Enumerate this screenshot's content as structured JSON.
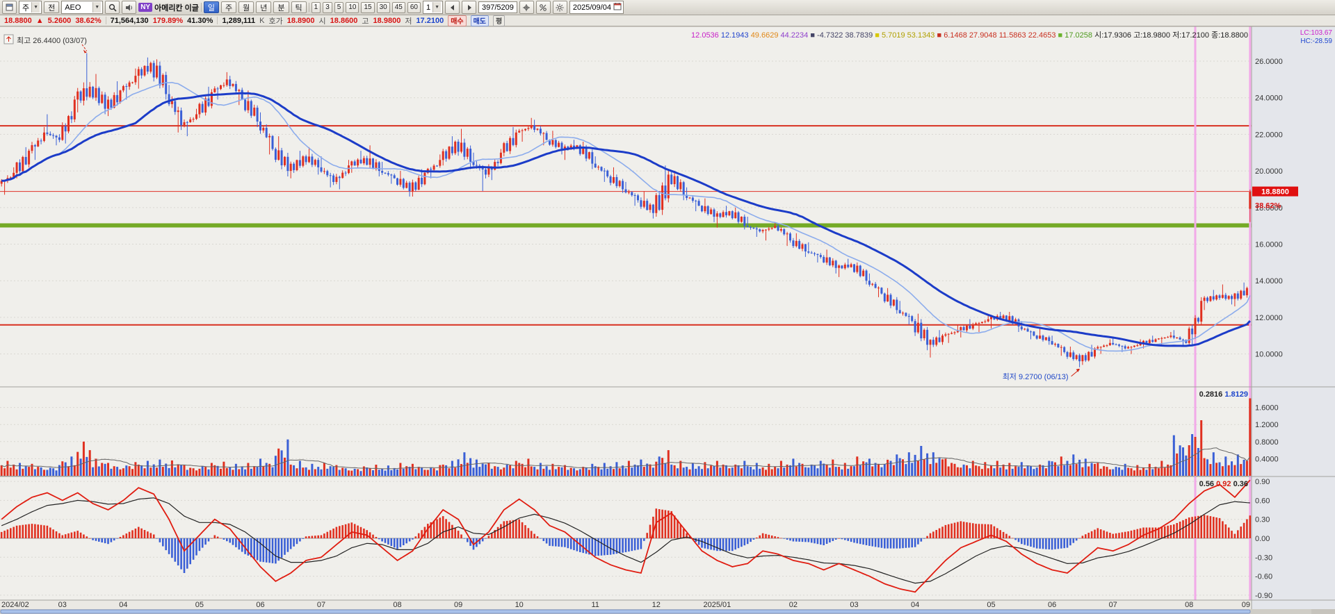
{
  "toolbar": {
    "market_select": "주",
    "all_button": "전",
    "symbol": "AEO",
    "market_badge": "NY",
    "stock_name": "아메리칸 이글",
    "periods": [
      "일",
      "주",
      "월",
      "년"
    ],
    "active_period": "일",
    "tick_buttons": [
      "분",
      "틱"
    ],
    "intervals": [
      "1",
      "3",
      "5",
      "10",
      "15",
      "30",
      "45",
      "60"
    ],
    "multiplier": "1",
    "range_indicator": "397/5209",
    "date": "2025/09/04"
  },
  "info_bar": {
    "price": "18.8800",
    "change_arrow": "▲",
    "change": "5.2600",
    "change_pct": "38.62%",
    "volume": "71,564,130",
    "turnover_pct": "179.89%",
    "ratio_pct": "41.30%",
    "value": "1,289,111",
    "value_unit": "K",
    "labels": {
      "quote": "호가",
      "open": "시",
      "high": "고",
      "low": "저"
    },
    "quote": "18.8900",
    "open": "18.8600",
    "high": "18.9800",
    "low": "17.2100",
    "buy": "매수",
    "sell": "매도",
    "avg": "평"
  },
  "annotations": {
    "highest": "최고 26.4400 (03/07)",
    "lowest": "최저 9.2700 (06/13)",
    "lc": "LC:103.67",
    "hc": "HC:-28.59"
  },
  "price_badge": {
    "value": "18.8800",
    "pct": "38.62%"
  },
  "legend_items": [
    {
      "text": "12.0536",
      "color": "#c820c8"
    },
    {
      "text": "12.1943",
      "color": "#2244cc"
    },
    {
      "text": "49.6629",
      "color": "#e08818"
    },
    {
      "text": "44.2234",
      "color": "#9040cc"
    },
    {
      "text": "-4.7322 38.7839",
      "color": "#444466",
      "marker": "#444466"
    },
    {
      "text": "5.7019 53.1343",
      "color": "#b0a000",
      "marker": "#d8c800"
    },
    {
      "text": "6.1468 27.9048 11.5863 22.4653",
      "color": "#c83020",
      "marker": "#c83020"
    },
    {
      "text": "17.0258",
      "color": "#4e9a1e",
      "marker": "#6ab22c"
    },
    {
      "text": "시:17.9306 고:18.9800 저:17.2100 종:18.8800",
      "color": "#222222"
    }
  ],
  "volume_legend": [
    {
      "text": "0.2816",
      "color": "#222222"
    },
    {
      "text": "1.8129",
      "color": "#1c44cc"
    }
  ],
  "osc_legend": [
    {
      "text": "0.56",
      "color": "#222222"
    },
    {
      "text": "0.92",
      "color": "#d81c10"
    },
    {
      "text": "0.36",
      "color": "#222222"
    }
  ],
  "chart_data": {
    "type": "candlestick",
    "symbol": "AEO",
    "timeframe": "daily (397/5209 bars shown, anchors below are weekly readings)",
    "price_axis": {
      "ticks": [
        26,
        24,
        22,
        20,
        18,
        16,
        14,
        12,
        10
      ],
      "labels": [
        "26.0000",
        "24.0000",
        "22.0000",
        "20.0000",
        "18.0000",
        "16.0000",
        "14.0000",
        "12.0000",
        "10.0000"
      ]
    },
    "volume_axis": {
      "ticks": [
        1.6,
        1.2,
        0.8,
        0.4
      ],
      "labels": [
        "1.6000",
        "1.2000",
        "0.8000",
        "0.4000"
      ]
    },
    "osc_axis": {
      "ticks": [
        0.9,
        0.6,
        0.3,
        0,
        -0.3,
        -0.6,
        -0.9
      ],
      "labels": [
        "0.90",
        "0.60",
        "0.30",
        "0.00",
        "-0.30",
        "-0.60",
        "-0.90"
      ]
    },
    "x_axis": {
      "labels": [
        "2024/02",
        "03",
        "04",
        "05",
        "06",
        "07",
        "08",
        "09",
        "10",
        "11",
        "12",
        "2025/01",
        "02",
        "03",
        "04",
        "05",
        "06",
        "07",
        "08",
        "09"
      ],
      "anchor_indices": [
        0,
        4,
        8,
        13,
        17,
        21,
        26,
        30,
        34,
        39,
        43,
        47,
        52,
        56,
        60,
        65,
        69,
        73,
        78,
        82
      ]
    },
    "hlines": [
      {
        "price": 22.4653,
        "color": "#d83020",
        "width": 2
      },
      {
        "price": 18.88,
        "color": "#e03028",
        "width": 1
      },
      {
        "price": 17.0258,
        "color": "#74aa26",
        "width": 6
      },
      {
        "price": 11.5863,
        "color": "#d83020",
        "width": 2
      }
    ],
    "vline_anchor_indices": [
      78,
      82
    ],
    "ma": [
      {
        "period": 20,
        "color": "#8cacec",
        "width": 1.6
      },
      {
        "period": 45,
        "color": "#1c3cc8",
        "width": 3
      }
    ],
    "highest": {
      "price": 26.44,
      "anchor": 5,
      "date": "03/07"
    },
    "lowest": {
      "price": 9.27,
      "anchor": 70,
      "date": "06/13"
    },
    "candles": [
      [
        19.3,
        20.2,
        18.7,
        19.9
      ],
      [
        19.9,
        21.3,
        19.6,
        21.1
      ],
      [
        21.1,
        22.4,
        20.6,
        22.1
      ],
      [
        22.1,
        23.1,
        21.4,
        21.7
      ],
      [
        21.7,
        24.1,
        21.5,
        23.9
      ],
      [
        23.9,
        26.44,
        23.2,
        24.6
      ],
      [
        24.6,
        25.3,
        23.1,
        23.4
      ],
      [
        23.4,
        24.9,
        23.0,
        24.4
      ],
      [
        24.4,
        25.6,
        23.9,
        25.2
      ],
      [
        25.2,
        26.2,
        24.5,
        25.9
      ],
      [
        25.9,
        26.1,
        23.9,
        24.2
      ],
      [
        24.2,
        24.7,
        22.1,
        22.5
      ],
      [
        22.5,
        23.4,
        21.9,
        23.1
      ],
      [
        23.1,
        24.6,
        22.9,
        24.3
      ],
      [
        24.3,
        25.4,
        23.9,
        25.0
      ],
      [
        25.0,
        25.2,
        23.6,
        23.9
      ],
      [
        23.9,
        24.4,
        22.4,
        22.7
      ],
      [
        22.7,
        23.2,
        20.9,
        21.2
      ],
      [
        21.2,
        21.9,
        19.7,
        20.0
      ],
      [
        20.0,
        21.1,
        19.6,
        20.8
      ],
      [
        20.8,
        21.3,
        19.8,
        20.2
      ],
      [
        20.2,
        20.8,
        19.1,
        19.4
      ],
      [
        19.4,
        20.6,
        19.0,
        20.3
      ],
      [
        20.3,
        21.1,
        19.9,
        20.7
      ],
      [
        20.7,
        21.4,
        19.7,
        20.0
      ],
      [
        20.0,
        20.5,
        19.3,
        19.6
      ],
      [
        19.6,
        20.0,
        18.6,
        18.9
      ],
      [
        18.9,
        20.1,
        18.6,
        19.9
      ],
      [
        19.9,
        20.9,
        19.6,
        20.6
      ],
      [
        20.6,
        21.9,
        20.3,
        21.6
      ],
      [
        21.6,
        22.3,
        20.1,
        20.5
      ],
      [
        20.5,
        21.0,
        18.9,
        19.8
      ],
      [
        19.8,
        21.2,
        19.5,
        21.0
      ],
      [
        21.0,
        22.4,
        20.8,
        22.1
      ],
      [
        22.1,
        22.9,
        21.6,
        22.5
      ],
      [
        22.5,
        22.8,
        21.4,
        21.7
      ],
      [
        21.7,
        22.2,
        20.9,
        21.2
      ],
      [
        21.2,
        21.7,
        20.6,
        21.4
      ],
      [
        21.4,
        21.6,
        20.1,
        20.4
      ],
      [
        20.4,
        20.8,
        19.4,
        19.7
      ],
      [
        19.7,
        20.2,
        18.8,
        19.0
      ],
      [
        19.0,
        19.4,
        18.1,
        18.4
      ],
      [
        18.4,
        18.9,
        17.4,
        17.7
      ],
      [
        17.7,
        20.3,
        17.5,
        19.8
      ],
      [
        19.8,
        20.0,
        18.4,
        18.7
      ],
      [
        18.7,
        19.1,
        17.8,
        18.1
      ],
      [
        18.1,
        18.5,
        17.2,
        17.5
      ],
      [
        17.5,
        18.1,
        16.9,
        17.8
      ],
      [
        17.8,
        18.0,
        16.8,
        17.0
      ],
      [
        17.0,
        17.5,
        16.4,
        16.7
      ],
      [
        16.7,
        17.2,
        16.2,
        17.0
      ],
      [
        17.0,
        17.1,
        15.9,
        16.2
      ],
      [
        16.2,
        16.6,
        15.3,
        15.6
      ],
      [
        15.6,
        16.1,
        15.0,
        15.3
      ],
      [
        15.3,
        15.7,
        14.4,
        14.7
      ],
      [
        14.7,
        15.2,
        14.2,
        14.9
      ],
      [
        14.9,
        15.0,
        13.8,
        14.0
      ],
      [
        14.0,
        14.4,
        13.1,
        13.3
      ],
      [
        13.3,
        13.6,
        12.2,
        12.4
      ],
      [
        12.4,
        12.9,
        11.6,
        11.8
      ],
      [
        11.8,
        12.2,
        10.2,
        10.5
      ],
      [
        10.5,
        11.3,
        9.8,
        11.0
      ],
      [
        11.0,
        11.6,
        10.6,
        11.3
      ],
      [
        11.3,
        11.9,
        10.9,
        11.6
      ],
      [
        11.6,
        12.1,
        11.2,
        11.9
      ],
      [
        11.9,
        12.3,
        11.4,
        12.1
      ],
      [
        12.1,
        12.3,
        11.2,
        11.5
      ],
      [
        11.5,
        11.8,
        10.8,
        11.0
      ],
      [
        11.0,
        11.4,
        10.5,
        10.7
      ],
      [
        10.7,
        11.0,
        9.9,
        10.1
      ],
      [
        10.1,
        10.4,
        9.27,
        9.6
      ],
      [
        9.6,
        10.5,
        9.4,
        10.3
      ],
      [
        10.3,
        10.8,
        10.0,
        10.6
      ],
      [
        10.6,
        10.9,
        10.1,
        10.3
      ],
      [
        10.3,
        10.8,
        10.0,
        10.6
      ],
      [
        10.6,
        11.0,
        10.3,
        10.8
      ],
      [
        10.8,
        11.2,
        10.5,
        11.0
      ],
      [
        11.0,
        11.3,
        10.4,
        10.6
      ],
      [
        10.6,
        13.1,
        10.5,
        12.9
      ],
      [
        12.9,
        13.5,
        12.4,
        13.2
      ],
      [
        13.2,
        13.8,
        12.7,
        13.0
      ],
      [
        13.0,
        13.9,
        12.6,
        13.6
      ],
      [
        17.9306,
        18.98,
        17.21,
        18.88
      ]
    ],
    "volumes": [
      0.35,
      0.3,
      0.28,
      0.25,
      0.45,
      0.8,
      0.4,
      0.3,
      0.32,
      0.35,
      0.38,
      0.36,
      0.25,
      0.3,
      0.33,
      0.28,
      0.3,
      0.4,
      0.85,
      0.35,
      0.28,
      0.3,
      0.25,
      0.22,
      0.26,
      0.24,
      0.3,
      0.28,
      0.25,
      0.35,
      0.55,
      0.38,
      0.3,
      0.35,
      0.4,
      0.3,
      0.28,
      0.25,
      0.28,
      0.3,
      0.32,
      0.35,
      0.38,
      0.6,
      0.35,
      0.3,
      0.32,
      0.35,
      0.35,
      0.3,
      0.28,
      0.35,
      0.4,
      0.35,
      0.38,
      0.3,
      0.45,
      0.4,
      0.5,
      0.55,
      0.7,
      0.55,
      0.4,
      0.35,
      0.32,
      0.35,
      0.3,
      0.32,
      0.35,
      0.45,
      0.5,
      0.4,
      0.3,
      0.28,
      0.25,
      0.28,
      0.35,
      0.95,
      1.3,
      0.55,
      0.45,
      0.5,
      1.8129
    ],
    "macd": {
      "red": [
        0.3,
        0.5,
        0.65,
        0.72,
        0.6,
        0.72,
        0.55,
        0.45,
        0.6,
        0.8,
        0.7,
        0.3,
        -0.2,
        0.05,
        0.3,
        0.15,
        -0.15,
        -0.45,
        -0.68,
        -0.55,
        -0.35,
        -0.3,
        -0.1,
        0.1,
        0.05,
        -0.15,
        -0.35,
        -0.2,
        0.15,
        0.45,
        0.3,
        -0.1,
        0.1,
        0.45,
        0.62,
        0.45,
        0.2,
        0.1,
        -0.1,
        -0.3,
        -0.42,
        -0.5,
        -0.55,
        0.25,
        0.4,
        0.1,
        -0.2,
        -0.35,
        -0.45,
        -0.4,
        -0.2,
        -0.25,
        -0.35,
        -0.4,
        -0.5,
        -0.4,
        -0.5,
        -0.6,
        -0.72,
        -0.8,
        -0.85,
        -0.6,
        -0.35,
        -0.15,
        -0.05,
        0.05,
        -0.05,
        -0.25,
        -0.4,
        -0.5,
        -0.55,
        -0.35,
        -0.15,
        -0.2,
        -0.1,
        0.05,
        0.15,
        0.3,
        0.55,
        0.75,
        0.85,
        0.65,
        0.92
      ],
      "black": [
        0.2,
        0.3,
        0.42,
        0.52,
        0.55,
        0.6,
        0.58,
        0.54,
        0.55,
        0.62,
        0.64,
        0.55,
        0.35,
        0.25,
        0.25,
        0.22,
        0.1,
        -0.08,
        -0.28,
        -0.38,
        -0.38,
        -0.35,
        -0.28,
        -0.15,
        -0.08,
        -0.1,
        -0.18,
        -0.18,
        -0.08,
        0.1,
        0.18,
        0.08,
        0.06,
        0.18,
        0.32,
        0.38,
        0.32,
        0.24,
        0.12,
        -0.02,
        -0.16,
        -0.28,
        -0.38,
        -0.22,
        -0.03,
        0.02,
        -0.05,
        -0.15,
        -0.25,
        -0.31,
        -0.28,
        -0.27,
        -0.3,
        -0.34,
        -0.39,
        -0.4,
        -0.43,
        -0.48,
        -0.56,
        -0.64,
        -0.71,
        -0.68,
        -0.56,
        -0.42,
        -0.28,
        -0.17,
        -0.12,
        -0.16,
        -0.24,
        -0.32,
        -0.4,
        -0.39,
        -0.31,
        -0.27,
        -0.21,
        -0.12,
        -0.02,
        0.08,
        0.22,
        0.38,
        0.53,
        0.58,
        0.56
      ]
    }
  }
}
